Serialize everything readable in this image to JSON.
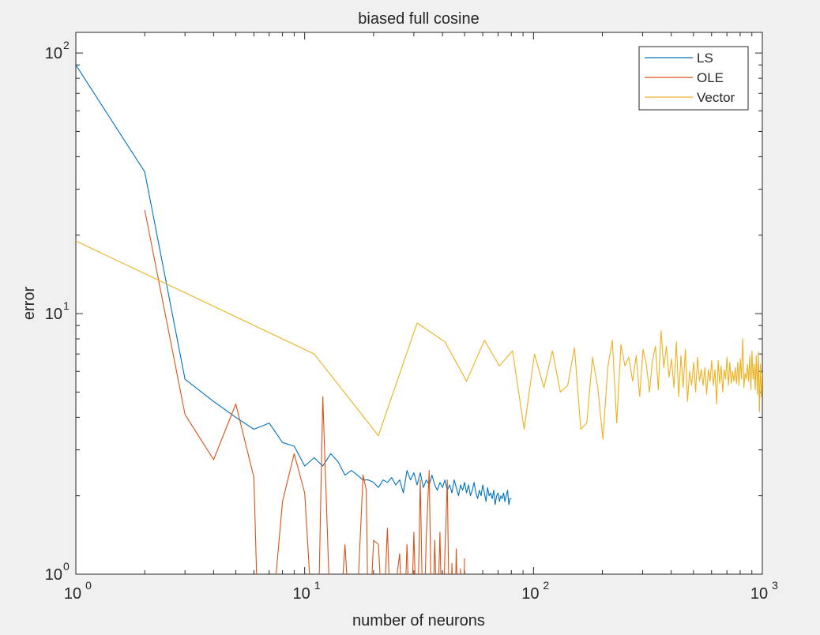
{
  "chart_data": {
    "type": "line",
    "title": "biased full cosine",
    "xlabel": "number of neurons",
    "ylabel": "error",
    "xscale": "log",
    "yscale": "log",
    "xlim": [
      1,
      1000
    ],
    "ylim": [
      1,
      120
    ],
    "grid": false,
    "legend_position": "top-right",
    "x_ticks": [
      {
        "value": 1,
        "base": "10",
        "exp": "0"
      },
      {
        "value": 10,
        "base": "10",
        "exp": "1"
      },
      {
        "value": 100,
        "base": "10",
        "exp": "2"
      },
      {
        "value": 1000,
        "base": "10",
        "exp": "3"
      }
    ],
    "y_ticks": [
      {
        "value": 1,
        "base": "10",
        "exp": "0"
      },
      {
        "value": 10,
        "base": "10",
        "exp": "1"
      },
      {
        "value": 100,
        "base": "10",
        "exp": "2"
      }
    ],
    "series": [
      {
        "name": "LS",
        "color": "#0072BD",
        "x": [
          1,
          2,
          3,
          4,
          5,
          6,
          7,
          8,
          9,
          10,
          11,
          12,
          13,
          14,
          15,
          16,
          17,
          18,
          19,
          20,
          21,
          22,
          23,
          24,
          25,
          26,
          27,
          28,
          29,
          30,
          31,
          32,
          33,
          34,
          35,
          36,
          37,
          38,
          39,
          40,
          41,
          42,
          43,
          44,
          45,
          46,
          47,
          48,
          49,
          50,
          51,
          52,
          53,
          54,
          55,
          56,
          57,
          58,
          59,
          60,
          61,
          62,
          63,
          64,
          65,
          66,
          67,
          68,
          69,
          70,
          71,
          72,
          73,
          74,
          75,
          76,
          77,
          78,
          79,
          80
        ],
        "y": [
          90,
          35,
          5.6,
          4.6,
          4.0,
          3.6,
          3.8,
          3.2,
          3.1,
          2.6,
          2.8,
          2.6,
          2.9,
          2.7,
          2.4,
          2.5,
          2.4,
          2.3,
          2.3,
          2.25,
          2.15,
          2.3,
          2.25,
          2.35,
          2.2,
          2.3,
          2.05,
          2.5,
          2.3,
          2.45,
          2.2,
          2.45,
          2.15,
          2.3,
          2.2,
          2.4,
          2.2,
          2.1,
          2.25,
          2.15,
          2.3,
          2.1,
          2.2,
          2.05,
          2.3,
          2.15,
          2.0,
          2.2,
          2.1,
          2.25,
          2.05,
          2.2,
          2.0,
          2.1,
          2.25,
          2.05,
          1.95,
          2.1,
          2.0,
          2.2,
          2.05,
          1.9,
          2.15,
          2.0,
          2.05,
          1.95,
          2.1,
          1.85,
          2.0,
          2.05,
          1.9,
          2.0,
          1.95,
          2.05,
          1.9,
          2.0,
          2.1,
          1.85,
          1.95,
          1.95
        ]
      },
      {
        "name": "OLE",
        "color": "#D95319",
        "x": [
          2,
          3,
          4,
          5,
          6,
          6.3,
          7,
          8,
          9,
          10,
          11,
          11.4,
          12,
          13,
          14,
          15,
          16,
          17,
          18,
          18.6,
          19,
          20,
          21,
          22,
          23,
          24,
          25,
          26,
          27,
          28,
          29,
          30,
          31,
          32,
          33,
          34,
          35,
          36,
          37,
          38,
          39,
          40,
          41,
          42,
          43,
          44,
          45,
          46,
          47,
          48,
          49,
          50
        ],
        "y": [
          25,
          4.1,
          2.75,
          4.5,
          2.35,
          0.5,
          0.5,
          1.9,
          2.9,
          2.05,
          0.5,
          0.5,
          4.8,
          0.6,
          0.5,
          1.3,
          0.5,
          0.8,
          2.4,
          2.1,
          0.5,
          1.35,
          1.3,
          0.6,
          1.5,
          0.5,
          0.9,
          1.2,
          0.5,
          1.3,
          0.5,
          1.45,
          0.5,
          2.3,
          0.5,
          1.4,
          2.5,
          0.5,
          1.35,
          0.6,
          1.45,
          0.5,
          1.2,
          2.3,
          0.5,
          1.1,
          0.5,
          1.25,
          0.5,
          1.05,
          0.55,
          1.15
        ]
      },
      {
        "name": "Vector",
        "color": "#EDB120",
        "x": [
          1,
          11,
          21,
          31,
          41,
          51,
          61,
          71,
          81,
          91,
          101,
          111,
          121,
          131,
          141,
          151,
          161,
          171,
          181,
          191,
          201,
          211,
          221,
          231,
          241,
          251,
          261,
          271,
          281,
          291,
          301,
          311,
          321,
          331,
          341,
          351,
          361,
          371,
          381,
          391,
          401,
          411,
          421,
          431,
          441,
          451,
          461,
          471,
          481,
          491,
          501,
          511,
          521,
          531,
          541,
          551,
          561,
          571,
          581,
          591,
          601,
          611,
          621,
          631,
          641,
          651,
          661,
          671,
          681,
          691,
          701,
          711,
          721,
          731,
          741,
          751,
          761,
          771,
          781,
          791,
          801,
          811,
          821,
          831,
          841,
          851,
          861,
          871,
          881,
          891,
          901,
          911,
          921,
          931,
          941,
          951,
          961,
          971,
          981,
          991,
          1000
        ],
        "y": [
          19,
          7.0,
          3.4,
          9.2,
          7.8,
          5.5,
          7.9,
          6.3,
          7.2,
          3.6,
          7.0,
          5.2,
          7.2,
          5.0,
          5.3,
          7.4,
          3.6,
          3.8,
          6.8,
          5.2,
          3.3,
          6.2,
          7.9,
          3.8,
          7.6,
          6.3,
          6.8,
          5.5,
          6.9,
          4.8,
          7.3,
          6.4,
          5.0,
          6.6,
          7.5,
          5.1,
          8.6,
          6.2,
          7.5,
          5.7,
          6.7,
          5.2,
          7.8,
          4.8,
          6.9,
          5.2,
          7.3,
          4.6,
          6.0,
          5.3,
          6.5,
          5.0,
          6.8,
          5.5,
          6.1,
          5.3,
          6.2,
          4.9,
          6.1,
          5.5,
          6.6,
          5.3,
          6.1,
          4.5,
          6.6,
          5.4,
          6.3,
          5.0,
          6.1,
          5.6,
          6.8,
          5.3,
          6.5,
          5.4,
          6.0,
          5.5,
          6.2,
          5.4,
          6.5,
          5.3,
          6.7,
          5.6,
          8.0,
          5.2,
          5.9,
          5.6,
          6.4,
          5.5,
          6.9,
          5.1,
          7.2,
          5.6,
          6.4,
          5.1,
          6.9,
          4.9,
          7.1,
          4.2,
          6.4,
          4.8,
          5.9
        ]
      }
    ]
  }
}
